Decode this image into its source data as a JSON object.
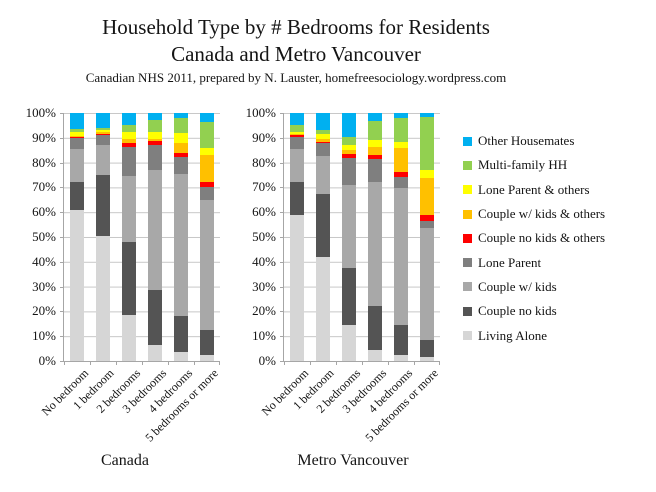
{
  "title": {
    "line1": "Household Type by # Bedrooms for Residents",
    "line2": "Canada and Metro Vancouver"
  },
  "subtitle": "Canadian NHS 2011, prepared by N. Lauster, homefreesociology.wordpress.com",
  "chart_data": {
    "type": "bar",
    "stacked": true,
    "unit": "percent of residents",
    "ylim": [
      0,
      100
    ],
    "grid": "horizontal, every 10%",
    "legend_position": "right",
    "y_ticks": [
      "100%",
      "90%",
      "80%",
      "70%",
      "60%",
      "50%",
      "40%",
      "30%",
      "20%",
      "10%",
      "0%"
    ],
    "categories": [
      "No bedroom",
      "1 bedroom",
      "2 bedrooms",
      "3 bedrooms",
      "4 bedrooms",
      "5 bedrooms or more"
    ],
    "series_order_bottom_to_top": [
      "Living Alone",
      "Couple no kids",
      "Couple w/ kids",
      "Lone Parent",
      "Couple no kids & others",
      "Couple w/ kids & others",
      "Lone Parent & others",
      "Multi-family HH",
      "Other Housemates"
    ],
    "legend_order_top_to_bottom": [
      "Other Housemates",
      "Multi-family HH",
      "Lone Parent & others",
      "Couple w/ kids & others",
      "Couple no kids & others",
      "Lone Parent",
      "Couple w/ kids",
      "Couple no kids",
      "Living Alone"
    ],
    "series_colors": {
      "Other Housemates": "#00b0f0",
      "Multi-family HH": "#92d050",
      "Lone Parent & others": "#ffff00",
      "Couple w/ kids & others": "#ffc000",
      "Couple no kids & others": "#fe0000",
      "Lone Parent": "#7f7f7f",
      "Couple w/ kids": "#a8a8a8",
      "Couple no kids": "#545454",
      "Living Alone": "#d6d6d6"
    },
    "panels": [
      {
        "name": "Canada",
        "series": [
          {
            "name": "Living Alone",
            "values": [
              61,
              50.5,
              18.5,
              6.5,
              3.5,
              2.5
            ]
          },
          {
            "name": "Couple no kids",
            "values": [
              11,
              24.5,
              29.5,
              22,
              14.5,
              10
            ]
          },
          {
            "name": "Couple w/ kids",
            "values": [
              13.5,
              12,
              26.5,
              48.5,
              57.5,
              52.5
            ]
          },
          {
            "name": "Lone Parent",
            "values": [
              4.5,
              4,
              11.9,
              10.1,
              6.9,
              5
            ]
          },
          {
            "name": "Couple no kids & others",
            "values": [
              0.3,
              0.7,
              1.5,
              1.8,
              1.6,
              2.3
            ]
          },
          {
            "name": "Couple w/ kids & others",
            "values": [
              0.5,
              0.5,
              1.6,
              0.5,
              3.8,
              10.8
            ]
          },
          {
            "name": "Lone Parent & others",
            "values": [
              1.7,
              1,
              3,
              2.9,
              4,
              2.7
            ]
          },
          {
            "name": "Multi-family HH",
            "values": [
              1.2,
              0.6,
              2.7,
              4.7,
              6,
              10.7
            ]
          },
          {
            "name": "Other Housemates",
            "values": [
              6.3,
              6.2,
              4.8,
              3,
              2.2,
              3.5
            ]
          }
        ]
      },
      {
        "name": "Metro Vancouver",
        "series": [
          {
            "name": "Living Alone",
            "values": [
              59,
              42,
              14.5,
              4.5,
              2.5,
              1.5
            ]
          },
          {
            "name": "Couple no kids",
            "values": [
              13,
              25.5,
              23,
              17.5,
              12,
              7
            ]
          },
          {
            "name": "Couple w/ kids",
            "values": [
              13.5,
              15,
              33.5,
              50.3,
              55.2,
              45
            ]
          },
          {
            "name": "Lone Parent",
            "values": [
              5,
              5.5,
              11,
              9,
              4.7,
              2.8
            ]
          },
          {
            "name": "Couple no kids & others",
            "values": [
              0.5,
              0.5,
              1.5,
              1.8,
              2,
              2.7
            ]
          },
          {
            "name": "Couple w/ kids & others",
            "values": [
              0.5,
              1,
              1.5,
              3.1,
              9.4,
              14.7
            ]
          },
          {
            "name": "Lone Parent & others",
            "values": [
              1,
              2,
              2,
              2.9,
              2.7,
              3.3
            ]
          },
          {
            "name": "Multi-family HH",
            "values": [
              2.5,
              1.5,
              3.5,
              7.8,
              9.3,
              21.3
            ]
          },
          {
            "name": "Other Housemates",
            "values": [
              5,
              7,
              9.5,
              3.1,
              2.2,
              1.7
            ]
          }
        ]
      }
    ]
  }
}
